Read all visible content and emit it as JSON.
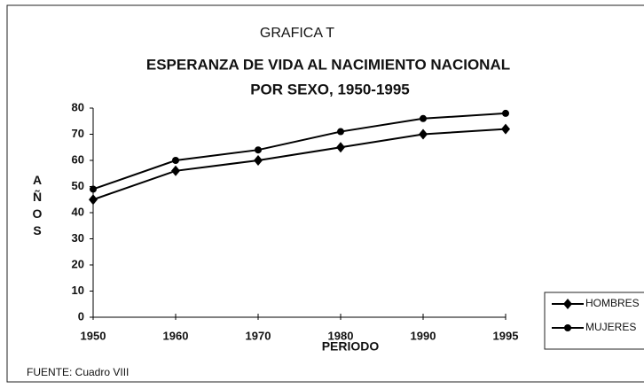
{
  "chart_data": {
    "type": "line",
    "title": "GRAFICA T",
    "subtitle": "ESPERANZA DE VIDA AL NACIMIENTO NACIONAL",
    "subtitle2": "POR SEXO, 1950-1995",
    "ylabel": "AÑOS",
    "xlabel": "PERIODO",
    "source": "FUENTE: Cuadro VIII",
    "categories": [
      "1950",
      "1960",
      "1970",
      "1980",
      "1990",
      "1995"
    ],
    "series": [
      {
        "name": "HOMBRES",
        "color": "#000000",
        "marker": "diamond",
        "values": [
          45,
          56,
          60,
          65,
          70,
          72
        ]
      },
      {
        "name": "MUJERES",
        "color": "#000000",
        "marker": "circle",
        "values": [
          49,
          60,
          64,
          71,
          76,
          78
        ]
      }
    ],
    "ylim": [
      0,
      80
    ],
    "yticks": [
      0,
      10,
      20,
      30,
      40,
      50,
      60,
      70,
      80
    ]
  }
}
